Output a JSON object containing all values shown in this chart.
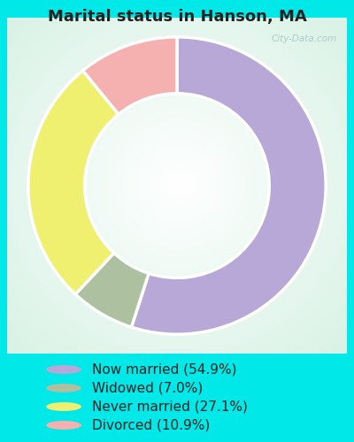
{
  "title": "Marital status in Hanson, MA",
  "slices": [
    54.9,
    7.0,
    27.1,
    10.9
  ],
  "colors": [
    "#b8a8d8",
    "#adc0a0",
    "#f0f070",
    "#f5b0b0"
  ],
  "labels": [
    "Now married (54.9%)",
    "Widowed (7.0%)",
    "Never married (27.1%)",
    "Divorced (10.9%)"
  ],
  "legend_colors": [
    "#b8a8d8",
    "#adc0a0",
    "#f0f070",
    "#f5b0b0"
  ],
  "background_outer": "#00e8e8",
  "chart_bg_color": "#e8f5ee",
  "title_fontsize": 13,
  "legend_fontsize": 11,
  "watermark": "City-Data.com",
  "start_angle": 90
}
